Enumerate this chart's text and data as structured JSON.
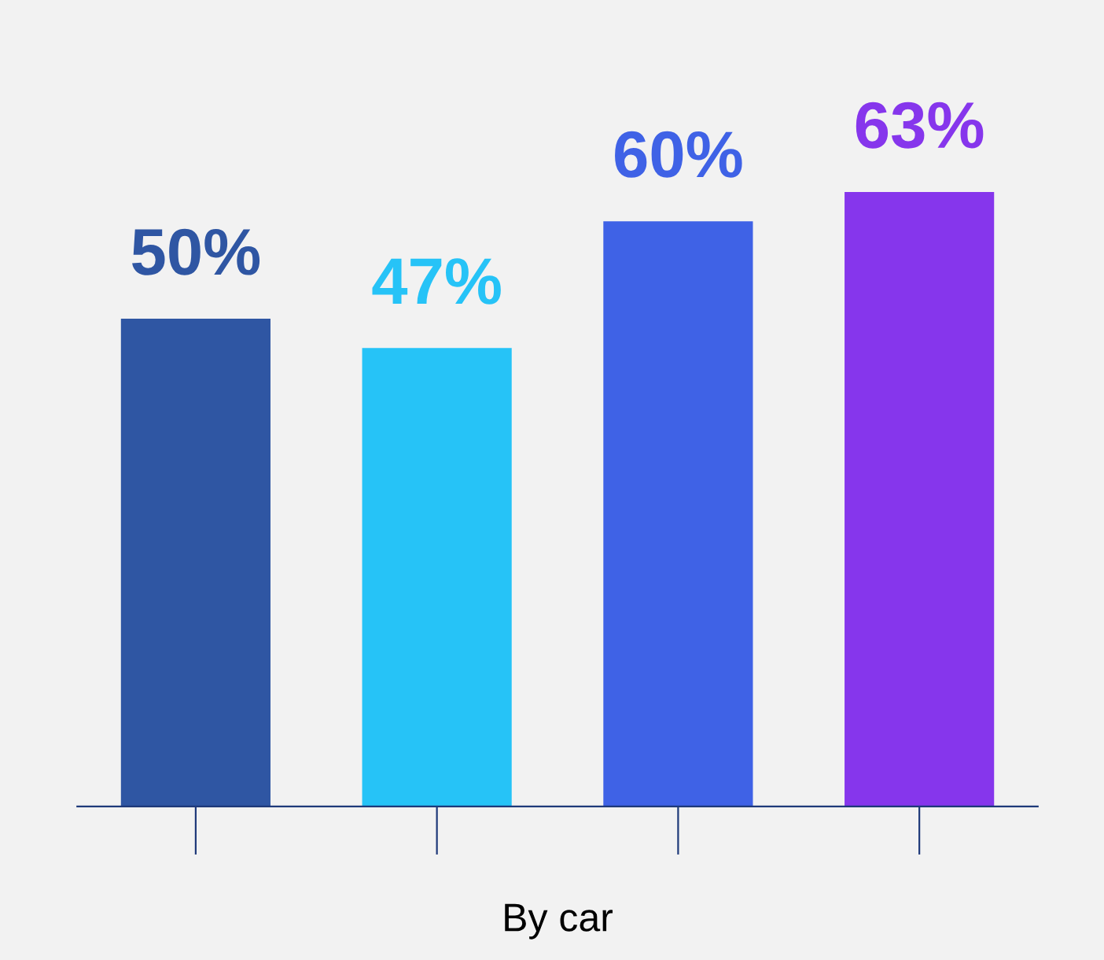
{
  "chart_data": {
    "type": "bar",
    "xlabel": "By car",
    "categories": [
      null,
      null,
      null,
      null
    ],
    "values": [
      50,
      47,
      60,
      63
    ],
    "colors": [
      "#2f56a3",
      "#26c3f7",
      "#3f62e6",
      "#8636ec"
    ],
    "value_labels": [
      "50%",
      "47%",
      "60%",
      "63%"
    ],
    "grid": false,
    "legend": false
  }
}
